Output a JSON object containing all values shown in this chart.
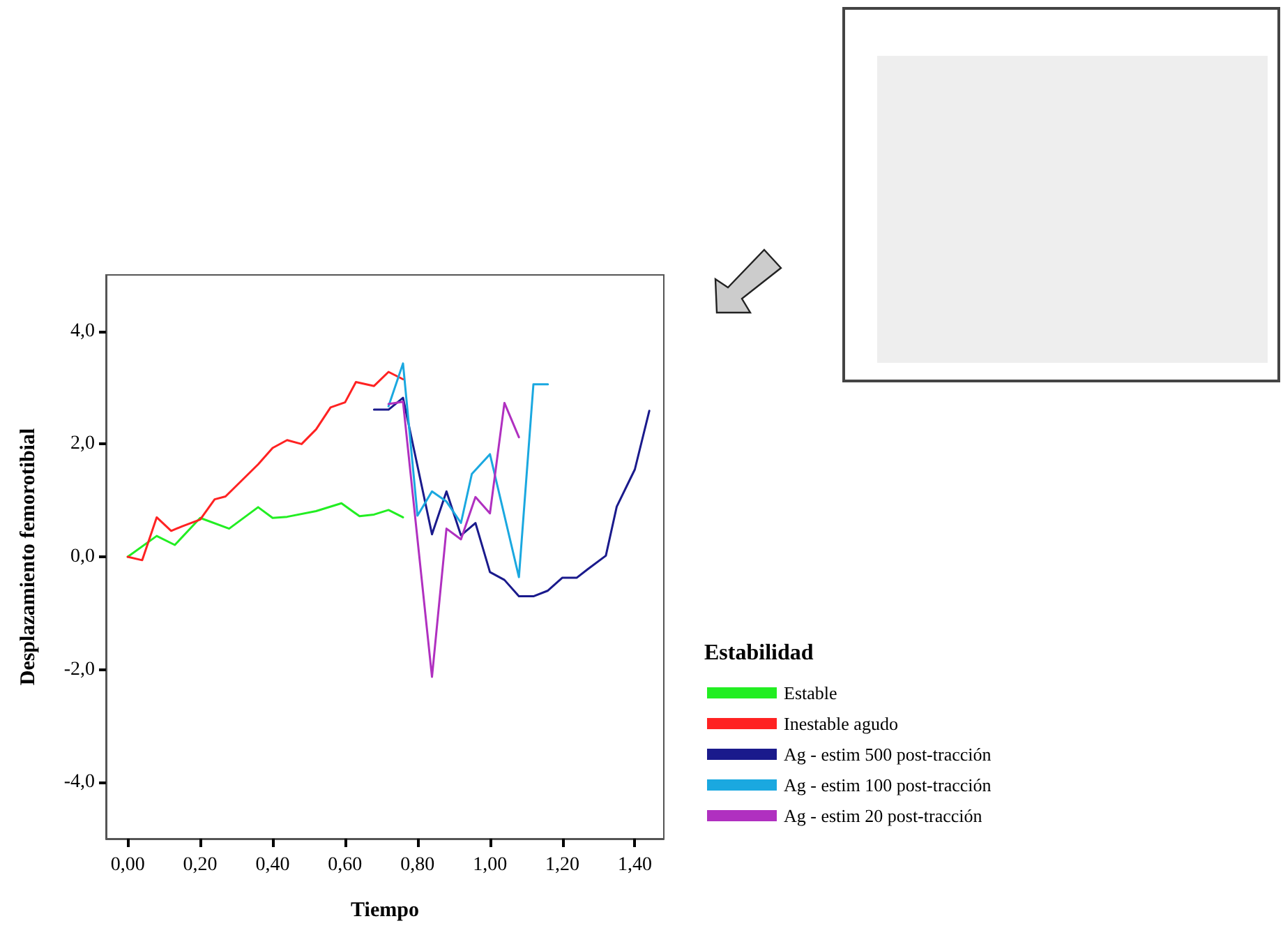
{
  "chart_data": {
    "type": "line",
    "xlabel": "Tiempo",
    "ylabel": "Desplazamiento femorotibial",
    "legend_title": "Estabilidad",
    "xlim": [
      -0.06,
      1.48
    ],
    "ylim": [
      -5,
      5
    ],
    "xticks": [
      {
        "value": 0,
        "label": "0,00"
      },
      {
        "value": 0.2,
        "label": "0,20"
      },
      {
        "value": 0.4,
        "label": "0,40"
      },
      {
        "value": 0.6,
        "label": "0,60"
      },
      {
        "value": 0.8,
        "label": "0,80"
      },
      {
        "value": 1.0,
        "label": "1,00"
      },
      {
        "value": 1.2,
        "label": "1,20"
      },
      {
        "value": 1.4,
        "label": "1,40"
      }
    ],
    "yticks": [
      {
        "value": -4,
        "label": "-4,0"
      },
      {
        "value": -2,
        "label": "-2,0"
      },
      {
        "value": 0,
        "label": "0,0"
      },
      {
        "value": 2,
        "label": "2,0"
      },
      {
        "value": 4,
        "label": "4,0"
      }
    ],
    "grid": false,
    "legend": "right",
    "marker": "none",
    "line_style": "solid",
    "series": [
      {
        "name": "Estable",
        "color": "#22ee22",
        "x": [
          0,
          0.08,
          0.13,
          0.2,
          0.28,
          0.36,
          0.4,
          0.44,
          0.52,
          0.59,
          0.64,
          0.68,
          0.72,
          0.76
        ],
        "values": [
          0,
          0.37,
          0.21,
          0.69,
          0.5,
          0.88,
          0.69,
          0.71,
          0.81,
          0.95,
          0.72,
          0.75,
          0.83,
          0.7
        ]
      },
      {
        "name": "Inestable agudo",
        "color": "#ff2222",
        "x": [
          0,
          0.04,
          0.08,
          0.12,
          0.15,
          0.2,
          0.24,
          0.27,
          0.36,
          0.4,
          0.44,
          0.48,
          0.52,
          0.56,
          0.6,
          0.63,
          0.68,
          0.72,
          0.76
        ],
        "values": [
          0,
          -0.06,
          0.7,
          0.46,
          0.54,
          0.66,
          1.02,
          1.07,
          1.64,
          1.93,
          2.07,
          2.0,
          2.26,
          2.65,
          2.74,
          3.1,
          3.03,
          3.28,
          3.15
        ]
      },
      {
        "name": "Ag - estim 500 post-tracción",
        "color": "#1a1a8c",
        "x": [
          0.68,
          0.72,
          0.76,
          0.84,
          0.88,
          0.92,
          0.96,
          1.0,
          1.04,
          1.08,
          1.12,
          1.16,
          1.2,
          1.24,
          1.27,
          1.32,
          1.35,
          1.4,
          1.44
        ],
        "values": [
          2.61,
          2.61,
          2.82,
          0.4,
          1.16,
          0.38,
          0.6,
          -0.27,
          -0.41,
          -0.7,
          -0.7,
          -0.6,
          -0.37,
          -0.37,
          -0.22,
          0.02,
          0.89,
          1.55,
          2.59
        ]
      },
      {
        "name": "Ag - estim 100 post-tracción",
        "color": "#1aa8e0",
        "x": [
          0.72,
          0.76,
          0.8,
          0.84,
          0.88,
          0.92,
          0.95,
          1.0,
          1.08,
          1.12,
          1.16
        ],
        "values": [
          2.67,
          3.43,
          0.73,
          1.16,
          0.98,
          0.6,
          1.47,
          1.82,
          -0.36,
          3.06,
          3.06
        ]
      },
      {
        "name": "Ag - estim 20 post-tracción",
        "color": "#b030c0",
        "x": [
          0.72,
          0.76,
          0.84,
          0.88,
          0.92,
          0.96,
          1.0,
          1.04,
          1.08
        ],
        "values": [
          2.71,
          2.75,
          -2.13,
          0.5,
          0.31,
          1.06,
          0.77,
          2.73,
          2.12
        ]
      }
    ]
  }
}
